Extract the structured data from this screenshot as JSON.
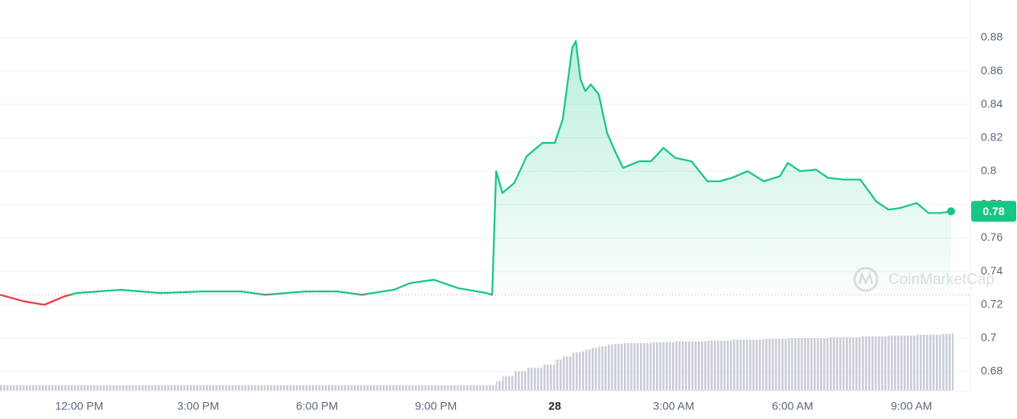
{
  "chart_data": {
    "type": "line",
    "x": [
      10.0,
      10.61,
      11.12,
      11.62,
      11.93,
      13.04,
      14.06,
      15.07,
      16.09,
      16.69,
      17.71,
      18.52,
      19.13,
      19.94,
      20.35,
      20.95,
      21.56,
      22.27,
      22.42,
      22.52,
      22.68,
      22.98,
      23.29,
      23.69,
      24.0,
      24.2,
      24.44,
      24.53,
      24.65,
      24.77,
      24.91,
      25.11,
      25.32,
      25.52,
      25.72,
      26.13,
      26.43,
      26.74,
      27.04,
      27.45,
      27.85,
      28.16,
      28.46,
      28.87,
      29.27,
      29.68,
      29.88,
      30.19,
      30.59,
      30.9,
      31.3,
      31.71,
      32.11,
      32.42,
      32.72,
      33.13,
      33.43,
      33.74,
      34.0
    ],
    "values": [
      0.726,
      0.722,
      0.72,
      0.725,
      0.727,
      0.729,
      0.727,
      0.728,
      0.728,
      0.726,
      0.728,
      0.728,
      0.726,
      0.729,
      0.733,
      0.735,
      0.73,
      0.727,
      0.726,
      0.8,
      0.787,
      0.793,
      0.809,
      0.817,
      0.817,
      0.831,
      0.874,
      0.878,
      0.855,
      0.848,
      0.852,
      0.846,
      0.823,
      0.812,
      0.802,
      0.806,
      0.806,
      0.814,
      0.808,
      0.806,
      0.794,
      0.794,
      0.796,
      0.8,
      0.794,
      0.797,
      0.805,
      0.8,
      0.801,
      0.796,
      0.795,
      0.795,
      0.782,
      0.777,
      0.778,
      0.781,
      0.775,
      0.775,
      0.776
    ],
    "volume": [
      7,
      7,
      7,
      7,
      7,
      7,
      7,
      7,
      7,
      7,
      7,
      7,
      7,
      7,
      7,
      7,
      7,
      7,
      7,
      12,
      18,
      24,
      28,
      32,
      38,
      42,
      46,
      47,
      48,
      50,
      52,
      54,
      56,
      57,
      58,
      58,
      59,
      59,
      60,
      60,
      61,
      61,
      62,
      62,
      63,
      63,
      64,
      64,
      64,
      65,
      65,
      66,
      66,
      67,
      67,
      68,
      68,
      69,
      70
    ],
    "baseline": 0.726,
    "up_color": "#16c784",
    "down_color": "#ea3943",
    "volume_color": "#c9cdd6",
    "last_label": "0.78",
    "watermark": "CoinMarketCap",
    "xlim": [
      10,
      34
    ],
    "xticks": [
      {
        "value": 12,
        "label": "12:00 PM"
      },
      {
        "value": 15,
        "label": "3:00 PM"
      },
      {
        "value": 18,
        "label": "6:00 PM"
      },
      {
        "value": 21,
        "label": "9:00 PM"
      },
      {
        "value": 24,
        "label": "28"
      },
      {
        "value": 27,
        "label": "3:00 AM"
      },
      {
        "value": 30,
        "label": "6:00 AM"
      },
      {
        "value": 33,
        "label": "9:00 AM"
      }
    ],
    "ylim": [
      0.6684,
      0.9026
    ],
    "yticks": [
      0.68,
      0.7,
      0.72,
      0.74,
      0.76,
      0.78,
      0.8,
      0.82,
      0.84,
      0.86,
      0.88
    ],
    "grid": true
  }
}
